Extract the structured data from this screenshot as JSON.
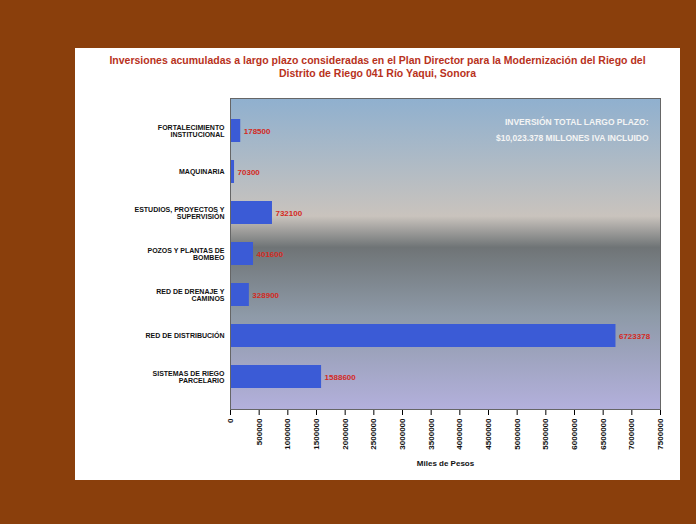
{
  "chart_data": {
    "type": "bar",
    "orientation": "horizontal",
    "title": "Inversiones acumuladas a largo plazo consideradas en el Plan Director para la Modernización del Riego del Distrito de Riego 041 Río Yaqui, Sonora",
    "categories": [
      "FORTALECIMIENTO INSTITUCIONAL",
      "MAQUINARIA",
      "ESTUDIOS, PROYECTOS Y SUPERVISIÓN",
      "POZOS Y PLANTAS DE BOMBEO",
      "RED DE DRENAJE Y CAMINOS",
      "RED DE DISTRIBUCIÓN",
      "SISTEMAS DE RIEGO PARCELARIO"
    ],
    "values": [
      178500,
      70300,
      732100,
      401600,
      328900,
      6723378,
      1588600
    ],
    "color": "#3b5bd6",
    "xlabel": "Miles de Pesos",
    "xlim": [
      0,
      7500000
    ],
    "xticks": [
      0,
      500000,
      1000000,
      1500000,
      2000000,
      2500000,
      3000000,
      3500000,
      4000000,
      4500000,
      5000000,
      5500000,
      6000000,
      6500000,
      7000000,
      7500000
    ],
    "data_labels": true,
    "grid": false,
    "annotations": [
      "INVERSIÓN TOTAL LARGO PLAZO:",
      "$10,023.378 MILLONES IVA INCLUIDO"
    ]
  }
}
